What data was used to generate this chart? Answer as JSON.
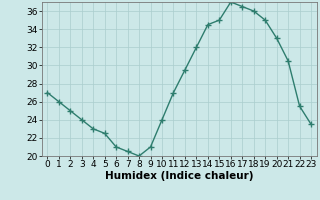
{
  "x": [
    0,
    1,
    2,
    3,
    4,
    5,
    6,
    7,
    8,
    9,
    10,
    11,
    12,
    13,
    14,
    15,
    16,
    17,
    18,
    19,
    20,
    21,
    22,
    23
  ],
  "y": [
    27,
    26,
    25,
    24,
    23,
    22.5,
    21,
    20.5,
    20,
    21,
    24,
    27,
    29.5,
    32,
    34.5,
    35,
    37,
    36.5,
    36,
    35,
    33,
    30.5,
    25.5,
    23.5
  ],
  "line_color": "#2e7d6e",
  "marker_color": "#2e7d6e",
  "bg_color": "#cce8e8",
  "grid_color": "#aacece",
  "xlabel": "Humidex (Indice chaleur)",
  "ylim": [
    20,
    37
  ],
  "xlim": [
    -0.5,
    23.5
  ],
  "yticks": [
    20,
    22,
    24,
    26,
    28,
    30,
    32,
    34,
    36
  ],
  "xticks": [
    0,
    1,
    2,
    3,
    4,
    5,
    6,
    7,
    8,
    9,
    10,
    11,
    12,
    13,
    14,
    15,
    16,
    17,
    18,
    19,
    20,
    21,
    22,
    23
  ],
  "xlabel_fontsize": 7.5,
  "tick_fontsize": 6.5,
  "line_width": 1.0,
  "marker_size": 4
}
